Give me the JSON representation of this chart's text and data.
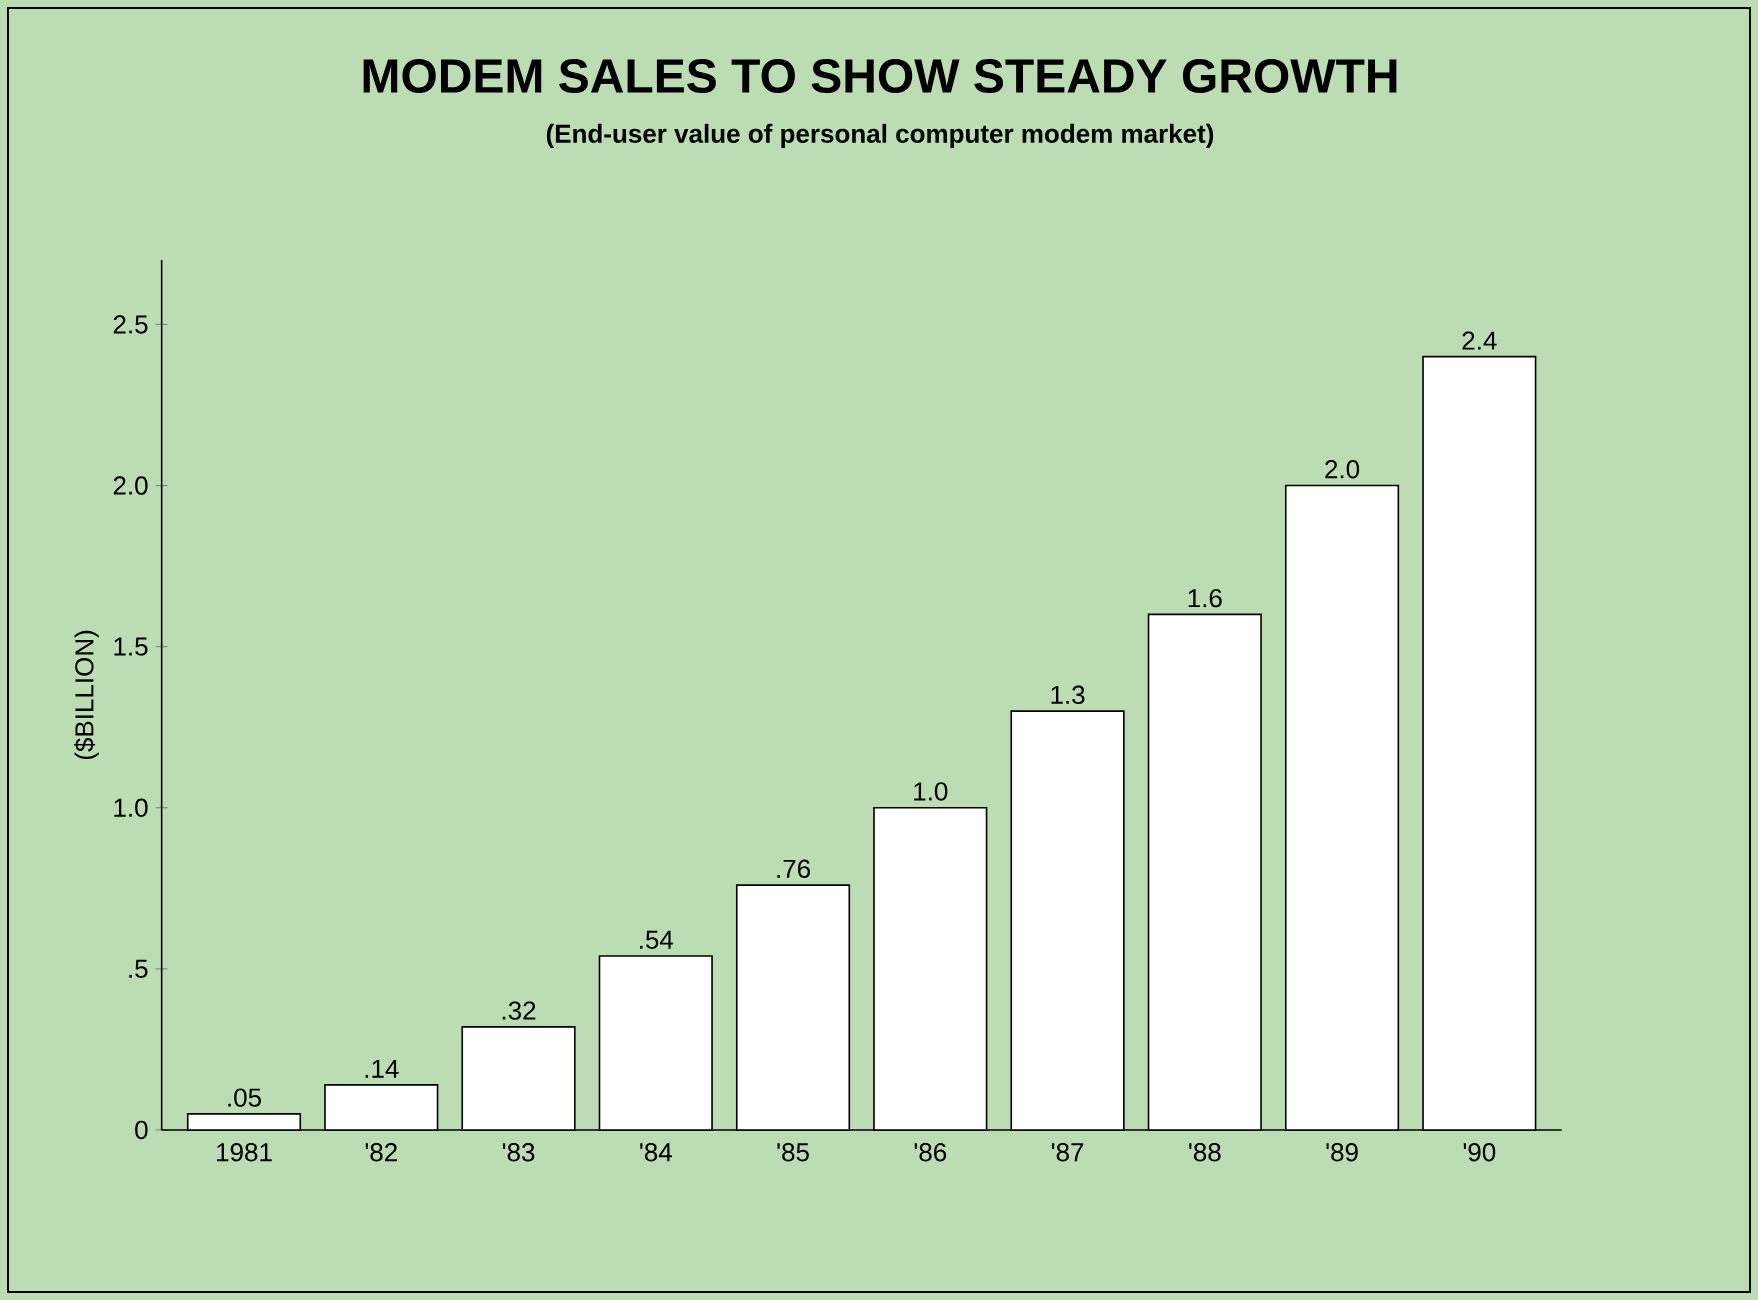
{
  "chart_data": {
    "type": "bar",
    "title": "MODEM SALES TO SHOW STEADY GROWTH",
    "subtitle": "(End-user value of personal computer modem market)",
    "ylabel": "($BILLION)",
    "categories": [
      "1981",
      "'82",
      "'83",
      "'84",
      "'85",
      "'86",
      "'87",
      "'88",
      "'89",
      "'90"
    ],
    "values": [
      0.05,
      0.14,
      0.32,
      0.54,
      0.76,
      1.0,
      1.3,
      1.6,
      2.0,
      2.4
    ],
    "value_labels": [
      ".05",
      ".14",
      ".32",
      ".54",
      ".76",
      "1.0",
      "1.3",
      "1.6",
      "2.0",
      "2.4"
    ],
    "color": "#ffffff",
    "ylim": [
      0,
      2.7
    ],
    "yticks": [
      0,
      {
        "value": 0.5,
        "label": ".5"
      },
      {
        "value": 1.0,
        "label": "1.0"
      },
      1.5,
      {
        "value": 2.0,
        "label": "2.0"
      },
      2.5
    ]
  }
}
